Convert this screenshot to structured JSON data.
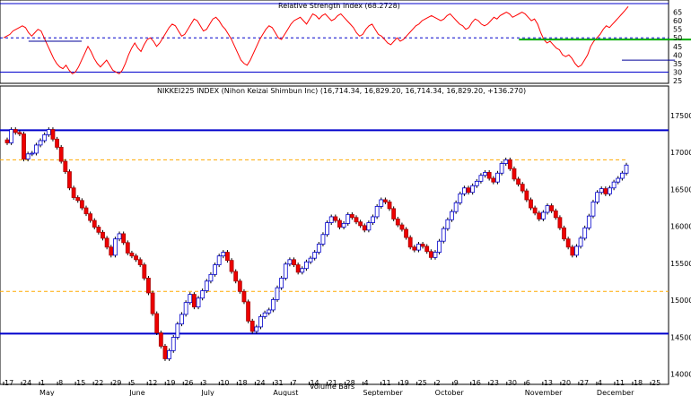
{
  "chart_data": [
    {
      "type": "line",
      "title": "Relative Strength Index (68.2728)",
      "ylim": [
        25,
        70
      ],
      "y_ticks": [
        "65",
        "60",
        "55",
        "50",
        "45",
        "40",
        "35",
        "30",
        "25"
      ],
      "series": [
        {
          "name": "RSI",
          "color": "#ff0000",
          "values": [
            50,
            51,
            52,
            54,
            55,
            56,
            57,
            56,
            53,
            51,
            53,
            55,
            54,
            50,
            46,
            42,
            38,
            35,
            33,
            32,
            34,
            31,
            29,
            30,
            33,
            37,
            41,
            45,
            42,
            38,
            35,
            33,
            35,
            37,
            34,
            31,
            30,
            29,
            31,
            35,
            40,
            44,
            47,
            44,
            42,
            46,
            49,
            50,
            48,
            45,
            47,
            50,
            53,
            56,
            58,
            57,
            54,
            51,
            52,
            55,
            58,
            61,
            60,
            57,
            54,
            55,
            58,
            61,
            62,
            60,
            57,
            55,
            52,
            49,
            45,
            41,
            37,
            35,
            34,
            37,
            41,
            45,
            49,
            52,
            55,
            57,
            56,
            53,
            50,
            49,
            52,
            55,
            58,
            60,
            61,
            62,
            60,
            58,
            61,
            64,
            63,
            61,
            63,
            64,
            62,
            60,
            61,
            63,
            64,
            62,
            60,
            58,
            56,
            53,
            51,
            52,
            55,
            57,
            58,
            55,
            52,
            51,
            49,
            47,
            46,
            48,
            50,
            48,
            49,
            51,
            53,
            55,
            57,
            58,
            60,
            61,
            62,
            63,
            62,
            61,
            60,
            61,
            63,
            64,
            62,
            60,
            58,
            57,
            55,
            56,
            59,
            61,
            60,
            58,
            57,
            58,
            60,
            62,
            61,
            63,
            64,
            65,
            64,
            62,
            63,
            64,
            65,
            64,
            62,
            60,
            61,
            58,
            53,
            49,
            47,
            48,
            46,
            44,
            43,
            40,
            39,
            40,
            38,
            35,
            33,
            34,
            37,
            40,
            45,
            48,
            50,
            52,
            55,
            57,
            56,
            58,
            60,
            62,
            64,
            66,
            68.27
          ]
        }
      ],
      "reference_lines": [
        {
          "value": 70,
          "color": "#0000cc",
          "style": "solid"
        },
        {
          "value": 50,
          "color": "#0000cc",
          "style": "dashed"
        },
        {
          "value": 30,
          "color": "#0000cc",
          "style": "solid"
        }
      ],
      "annotation_lines": [
        {
          "color": "#00aa00",
          "from": [
            165,
            49
          ],
          "to": [
            225,
            49
          ]
        },
        {
          "color": "#000099",
          "from": [
            8,
            48
          ],
          "to": [
            25,
            48
          ]
        },
        {
          "color": "#000099",
          "from": [
            198,
            37
          ],
          "to": [
            215,
            37
          ]
        }
      ],
      "grid": false
    },
    {
      "type": "candlestick",
      "title": "NIKKEI225 INDEX (Nihon Keizai Shimbun Inc) (16,714.34, 16,829.20, 16,714.34, 16,829.20, +136.270)",
      "ylim": [
        13900,
        17850
      ],
      "y_ticks": [
        "17500",
        "17000",
        "16500",
        "16000",
        "15500",
        "15000",
        "14500",
        "14000"
      ],
      "x_tick_labels": [
        "17",
        "24",
        "1",
        "8",
        "15",
        "22",
        "29",
        "5",
        "12",
        "19",
        "26",
        "3",
        "10",
        "18",
        "24",
        "31",
        "7",
        "14",
        "21",
        "28",
        "4",
        "11",
        "19",
        "25",
        "2",
        "9",
        "16",
        "23",
        "30",
        "6",
        "13",
        "20",
        "27",
        "4",
        "11",
        "18",
        "25"
      ],
      "month_labels": [
        "May",
        "June",
        "July",
        "August",
        "September",
        "October",
        "November",
        "December"
      ],
      "x_overlay_text": "Volume Bars",
      "ohlc_close": [
        17130,
        17310,
        17270,
        17250,
        16910,
        16980,
        16990,
        17100,
        17160,
        17240,
        17310,
        17180,
        17070,
        16880,
        16740,
        16520,
        16390,
        16350,
        16250,
        16170,
        16080,
        15990,
        15920,
        15840,
        15720,
        15610,
        15830,
        15900,
        15780,
        15640,
        15600,
        15550,
        15480,
        15300,
        15100,
        14820,
        14560,
        14380,
        14210,
        14320,
        14500,
        14680,
        14810,
        14970,
        15080,
        14910,
        15030,
        15130,
        15260,
        15350,
        15480,
        15600,
        15650,
        15540,
        15390,
        15260,
        15120,
        14980,
        14720,
        14580,
        14640,
        14780,
        14830,
        14870,
        15010,
        15170,
        15300,
        15490,
        15550,
        15480,
        15380,
        15430,
        15520,
        15570,
        15650,
        15760,
        15890,
        16050,
        16130,
        16080,
        15990,
        16040,
        16160,
        16120,
        16060,
        16010,
        15950,
        16050,
        16130,
        16270,
        16360,
        16330,
        16240,
        16100,
        16020,
        15960,
        15850,
        15720,
        15680,
        15760,
        15730,
        15660,
        15580,
        15650,
        15800,
        15970,
        16090,
        16200,
        16320,
        16440,
        16520,
        16460,
        16550,
        16610,
        16690,
        16730,
        16650,
        16600,
        16720,
        16850,
        16900,
        16780,
        16640,
        16570,
        16480,
        16360,
        16250,
        16180,
        16100,
        16190,
        16280,
        16210,
        16120,
        15980,
        15830,
        15720,
        15610,
        15730,
        15840,
        15980,
        16140,
        16330,
        16460,
        16510,
        16440,
        16520,
        16600,
        16650,
        16720,
        16829.2
      ],
      "reference_lines": [
        {
          "value": 17300,
          "color": "#0000cc",
          "style": "solid"
        },
        {
          "value": 16900,
          "color": "#ffaa00",
          "style": "dashed"
        },
        {
          "value": 15120,
          "color": "#ffaa00",
          "style": "dashed"
        },
        {
          "value": 14550,
          "color": "#0000cc",
          "style": "solid"
        }
      ],
      "grid": false
    }
  ]
}
